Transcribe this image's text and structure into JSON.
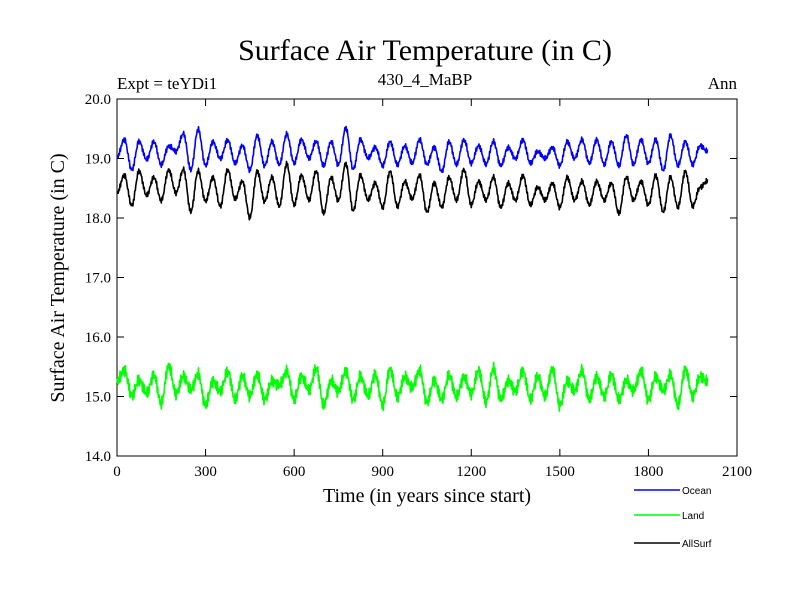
{
  "chart_data": {
    "type": "line",
    "title": "Surface Air Temperature (in C)",
    "subtitle": "430_4_MaBP",
    "left_annotation": "Expt = teYDi1",
    "right_annotation": "Ann",
    "xlabel": "Time (in years since start)",
    "ylabel": "Surface Air Temperature (in C)",
    "xlim": [
      0,
      2100
    ],
    "ylim": [
      14.0,
      20.0
    ],
    "xticks": [
      0,
      300,
      600,
      900,
      1200,
      1500,
      1800,
      2100
    ],
    "yticks": [
      14.0,
      15.0,
      16.0,
      17.0,
      18.0,
      19.0,
      20.0
    ],
    "xtick_labels": [
      "0",
      "300",
      "600",
      "900",
      "1200",
      "1500",
      "1800",
      "2100"
    ],
    "ytick_labels": [
      "14.0",
      "15.0",
      "16.0",
      "17.0",
      "18.0",
      "19.0",
      "20.0"
    ],
    "legend_position": "bottom-right, outside plot",
    "series": [
      {
        "name": "Ocean",
        "color": "#0000ff",
        "x_range": [
          0,
          2000
        ],
        "x_step": 25,
        "values": [
          19.0,
          19.3,
          18.8,
          19.3,
          19.0,
          19.3,
          18.9,
          19.2,
          19.1,
          19.4,
          18.8,
          19.5,
          18.9,
          19.3,
          19.0,
          19.3,
          18.9,
          19.2,
          18.8,
          19.4,
          18.9,
          19.3,
          18.9,
          19.4,
          18.9,
          19.3,
          19.0,
          19.3,
          18.9,
          19.3,
          18.9,
          19.5,
          18.8,
          19.3,
          19.0,
          19.2,
          18.9,
          19.3,
          18.9,
          19.2,
          18.9,
          19.3,
          18.9,
          19.2,
          18.8,
          19.3,
          18.9,
          19.3,
          18.9,
          19.2,
          18.9,
          19.3,
          18.9,
          19.2,
          19.0,
          19.3,
          18.9,
          19.1,
          19.0,
          19.2,
          18.9,
          19.3,
          19.0,
          19.3,
          18.9,
          19.3,
          18.9,
          19.3,
          18.9,
          19.4,
          18.9,
          19.3,
          18.9,
          19.3,
          18.8,
          19.4,
          18.9,
          19.3,
          18.9,
          19.2,
          19.1
        ]
      },
      {
        "name": "Land",
        "color": "#00ff00",
        "x_range": [
          0,
          2000
        ],
        "x_step": 25,
        "values": [
          15.2,
          15.4,
          15.0,
          15.3,
          15.1,
          15.4,
          14.9,
          15.5,
          15.0,
          15.3,
          15.1,
          15.4,
          14.9,
          15.3,
          15.1,
          15.4,
          14.9,
          15.3,
          15.0,
          15.4,
          15.0,
          15.3,
          15.2,
          15.4,
          14.9,
          15.3,
          15.1,
          15.5,
          14.9,
          15.3,
          15.1,
          15.4,
          14.9,
          15.3,
          15.0,
          15.4,
          14.9,
          15.5,
          15.0,
          15.3,
          15.1,
          15.4,
          14.9,
          15.3,
          15.0,
          15.4,
          15.0,
          15.3,
          15.0,
          15.4,
          14.9,
          15.5,
          15.0,
          15.3,
          15.1,
          15.4,
          14.9,
          15.3,
          15.0,
          15.5,
          14.9,
          15.3,
          15.1,
          15.4,
          14.9,
          15.3,
          15.0,
          15.4,
          15.0,
          15.3,
          15.1,
          15.4,
          14.9,
          15.3,
          15.1,
          15.4,
          14.9,
          15.5,
          15.0,
          15.3,
          15.2
        ]
      },
      {
        "name": "AllSurf",
        "color": "#000000",
        "x_range": [
          0,
          2000
        ],
        "x_step": 25,
        "values": [
          18.4,
          18.7,
          18.2,
          18.8,
          18.4,
          18.7,
          18.3,
          18.8,
          18.4,
          18.8,
          18.1,
          18.8,
          18.3,
          18.7,
          18.2,
          18.8,
          18.3,
          18.6,
          18.0,
          18.8,
          18.3,
          18.7,
          18.2,
          18.9,
          18.2,
          18.7,
          18.3,
          18.8,
          18.1,
          18.7,
          18.3,
          18.9,
          18.1,
          18.7,
          18.3,
          18.6,
          18.2,
          18.8,
          18.2,
          18.6,
          18.3,
          18.7,
          18.1,
          18.6,
          18.2,
          18.7,
          18.3,
          18.8,
          18.2,
          18.6,
          18.3,
          18.7,
          18.2,
          18.6,
          18.3,
          18.7,
          18.2,
          18.5,
          18.3,
          18.6,
          18.2,
          18.7,
          18.3,
          18.6,
          18.2,
          18.6,
          18.3,
          18.6,
          18.1,
          18.7,
          18.3,
          18.6,
          18.2,
          18.7,
          18.1,
          18.7,
          18.2,
          18.8,
          18.2,
          18.5,
          18.6
        ]
      }
    ]
  }
}
